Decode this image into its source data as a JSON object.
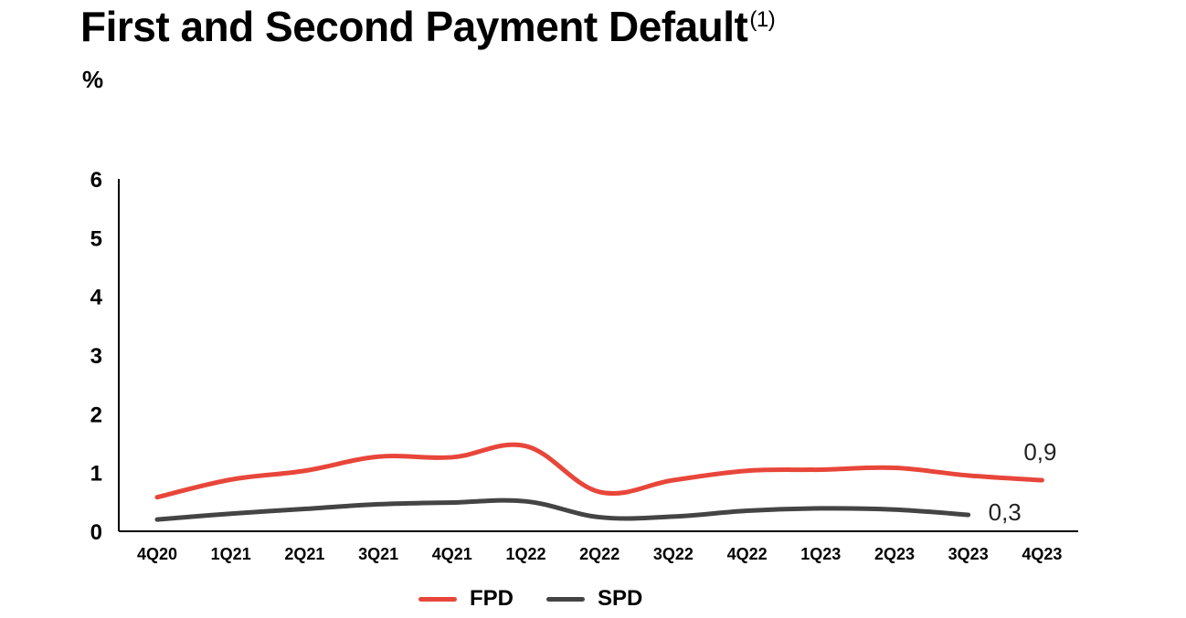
{
  "title": "First and Second Payment Default",
  "title_note": "(1)",
  "unit": "%",
  "colors": {
    "fpd": "#e8463a",
    "spd": "#444444",
    "axis": "#000000"
  },
  "chart_data": {
    "type": "line",
    "title": "First and Second Payment Default",
    "ylabel": "%",
    "ylim": [
      0,
      6
    ],
    "yticks": [
      "0",
      "1",
      "2",
      "3",
      "4",
      "5",
      "6"
    ],
    "categories": [
      "4Q20",
      "1Q21",
      "2Q21",
      "3Q21",
      "4Q21",
      "1Q22",
      "2Q22",
      "3Q22",
      "4Q22",
      "1Q23",
      "2Q23",
      "3Q23",
      "4Q23"
    ],
    "grid": false,
    "legend_position": "bottom",
    "series": [
      {
        "name": "FPD",
        "color": "#e8463a",
        "values": [
          0.58,
          0.88,
          1.03,
          1.27,
          1.26,
          1.45,
          0.67,
          0.87,
          1.03,
          1.05,
          1.08,
          0.95,
          0.87
        ],
        "end_label": "0,9"
      },
      {
        "name": "SPD",
        "color": "#444444",
        "values": [
          0.2,
          0.3,
          0.38,
          0.46,
          0.49,
          0.51,
          0.24,
          0.25,
          0.35,
          0.39,
          0.37,
          0.28,
          null
        ],
        "end_label": "0,3"
      }
    ]
  }
}
